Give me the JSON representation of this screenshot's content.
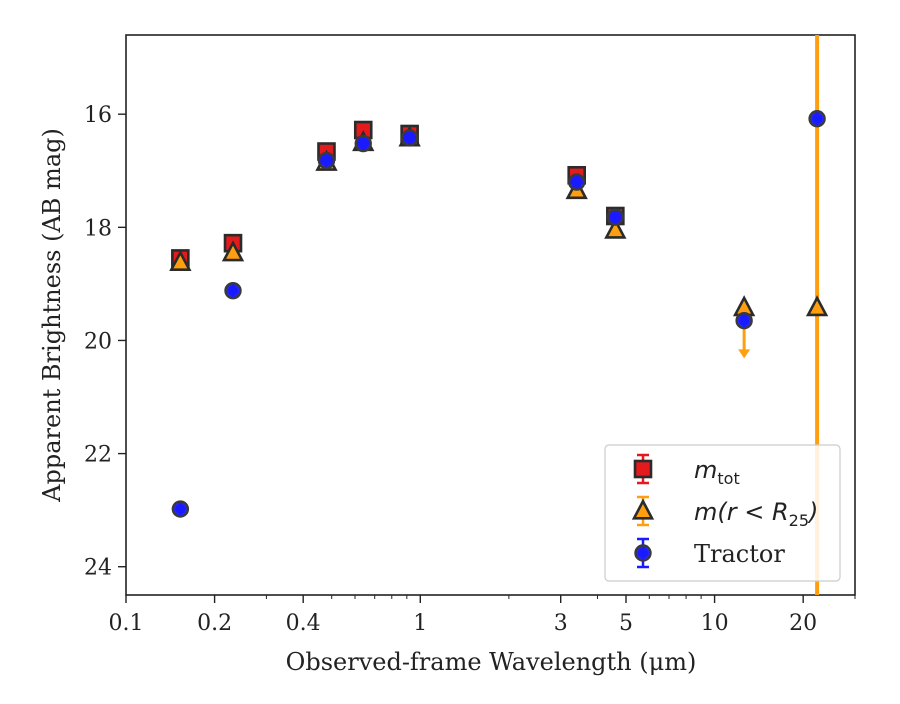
{
  "chart_data": {
    "type": "scatter",
    "xlabel": "Observed-frame Wavelength (μm)",
    "ylabel": "Apparent Brightness (AB mag)",
    "xscale": "log",
    "xlim": [
      0.1,
      30
    ],
    "ylim": [
      24.5,
      14.6
    ],
    "y_inverted": true,
    "xticks": [
      {
        "value": 0.1,
        "label": "0.1"
      },
      {
        "value": 0.2,
        "label": "0.2"
      },
      {
        "value": 0.4,
        "label": "0.4"
      },
      {
        "value": 1,
        "label": "1"
      },
      {
        "value": 3,
        "label": "3"
      },
      {
        "value": 5,
        "label": "5"
      },
      {
        "value": 10,
        "label": "10"
      },
      {
        "value": 20,
        "label": "20"
      }
    ],
    "yticks": [
      {
        "value": 16,
        "label": "16"
      },
      {
        "value": 18,
        "label": "18"
      },
      {
        "value": 20,
        "label": "20"
      },
      {
        "value": 22,
        "label": "22"
      },
      {
        "value": 24,
        "label": "24"
      }
    ],
    "grid": false,
    "legend_position": "lower-right",
    "series": [
      {
        "name": "m_tot",
        "label_main": "m",
        "label_sub": "tot",
        "marker": "square",
        "color": "#e41a1c",
        "points": [
          {
            "x": 0.153,
            "y": 18.55
          },
          {
            "x": 0.231,
            "y": 18.28
          },
          {
            "x": 0.48,
            "y": 16.66
          },
          {
            "x": 0.64,
            "y": 16.28
          },
          {
            "x": 0.92,
            "y": 16.35
          },
          {
            "x": 3.4,
            "y": 17.08
          },
          {
            "x": 4.6,
            "y": 17.8
          }
        ]
      },
      {
        "name": "m(r < R_25)",
        "label_main": "m(r < R",
        "label_sub": "25",
        "label_tail": ")",
        "marker": "triangle",
        "color": "#ff9f10",
        "points": [
          {
            "x": 0.153,
            "y": 18.62
          },
          {
            "x": 0.231,
            "y": 18.45
          },
          {
            "x": 0.48,
            "y": 16.85
          },
          {
            "x": 0.64,
            "y": 16.5
          },
          {
            "x": 0.92,
            "y": 16.42
          },
          {
            "x": 3.4,
            "y": 17.35
          },
          {
            "x": 4.6,
            "y": 18.05
          },
          {
            "x": 12.6,
            "y": 19.42,
            "upper_limit": true,
            "limit_to": 20.3
          },
          {
            "x": 22.3,
            "y": 19.42,
            "vertical_band": true
          }
        ]
      },
      {
        "name": "Tractor",
        "label_main": "Tractor",
        "marker": "circle",
        "color": "#1a1aff",
        "points": [
          {
            "x": 0.153,
            "y": 22.98
          },
          {
            "x": 0.231,
            "y": 19.12
          },
          {
            "x": 0.48,
            "y": 16.82
          },
          {
            "x": 0.64,
            "y": 16.52
          },
          {
            "x": 0.92,
            "y": 16.42
          },
          {
            "x": 3.4,
            "y": 17.2
          },
          {
            "x": 4.6,
            "y": 17.82
          },
          {
            "x": 12.6,
            "y": 19.65
          },
          {
            "x": 22.3,
            "y": 16.08
          }
        ]
      }
    ]
  }
}
